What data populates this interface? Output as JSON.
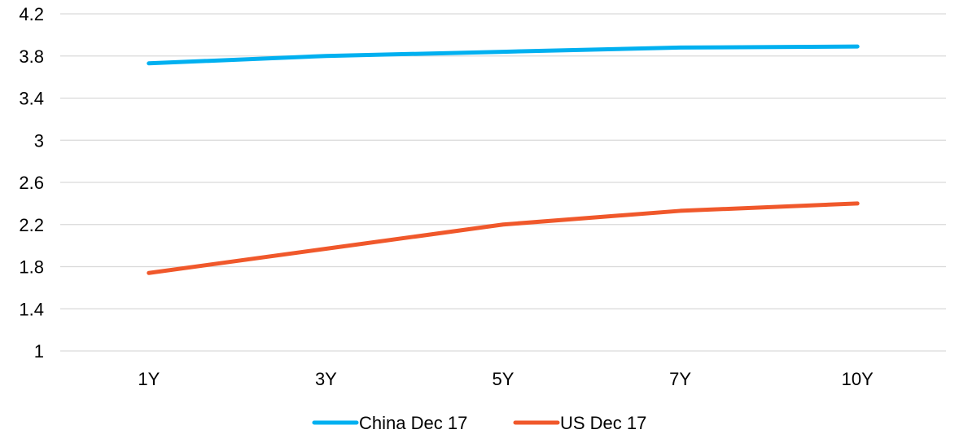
{
  "chart_data": {
    "type": "line",
    "title": "",
    "xlabel": "",
    "ylabel": "",
    "categories": [
      "1Y",
      "3Y",
      "5Y",
      "7Y",
      "10Y"
    ],
    "ylim": [
      1,
      4.2
    ],
    "yticks": [
      "1",
      "1.4",
      "1.8",
      "2.2",
      "2.6",
      "3",
      "3.4",
      "3.8",
      "4.2"
    ],
    "grid": true,
    "legend_position": "bottom",
    "series": [
      {
        "name": "China Dec 17",
        "color": "#00b0f0",
        "values": [
          3.73,
          3.8,
          3.84,
          3.88,
          3.89
        ]
      },
      {
        "name": "US Dec 17",
        "color": "#f0582b",
        "values": [
          1.74,
          1.97,
          2.2,
          2.33,
          2.4
        ]
      }
    ]
  }
}
